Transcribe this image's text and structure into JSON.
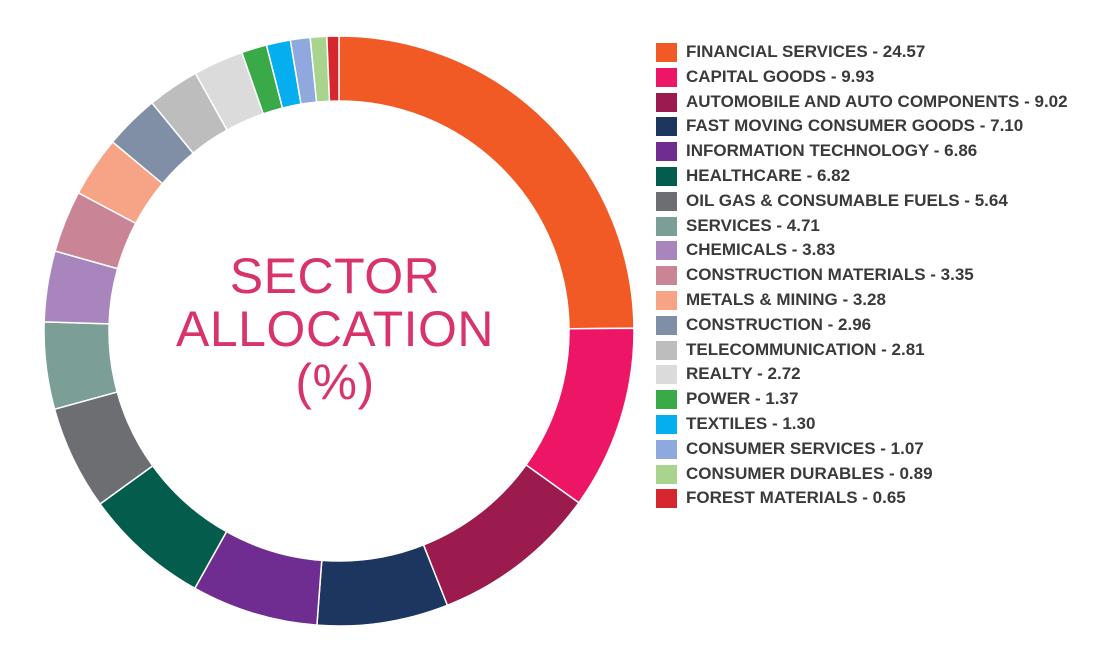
{
  "center_label": {
    "line1": "SECTOR",
    "line2": "ALLOCATION",
    "line3": "(%)"
  },
  "chart_data": {
    "type": "pie",
    "donut": true,
    "legend_placement": "right",
    "slices": [
      {
        "label": "FINANCIAL SERVICES - 24.57",
        "name": "FINANCIAL SERVICES",
        "value": 24.57,
        "color": "#f15a24"
      },
      {
        "label": "CAPITAL GOODS - 9.93",
        "name": "CAPITAL GOODS",
        "value": 9.93,
        "color": "#ed1566"
      },
      {
        "label": "AUTOMOBILE AND AUTO COMPONENTS - 9.02",
        "name": "AUTOMOBILE AND AUTO COMPONENTS",
        "value": 9.02,
        "color": "#9b1b4e"
      },
      {
        "label": "FAST MOVING CONSUMER GOODS - 7.10",
        "name": "FAST MOVING CONSUMER GOODS",
        "value": 7.1,
        "color": "#1c3660"
      },
      {
        "label": "INFORMATION TECHNOLOGY - 6.86",
        "name": "INFORMATION TECHNOLOGY",
        "value": 6.86,
        "color": "#6f2c91"
      },
      {
        "label": "HEALTHCARE - 6.82",
        "name": "HEALTHCARE",
        "value": 6.82,
        "color": "#045c4c"
      },
      {
        "label": "OIL GAS & CONSUMABLE FUELS - 5.64",
        "name": "OIL GAS & CONSUMABLE FUELS",
        "value": 5.64,
        "color": "#6d6e71"
      },
      {
        "label": "SERVICES - 4.71",
        "name": "SERVICES",
        "value": 4.71,
        "color": "#7b9f96"
      },
      {
        "label": "CHEMICALS - 3.83",
        "name": "CHEMICALS",
        "value": 3.83,
        "color": "#a886bd"
      },
      {
        "label": "CONSTRUCTION MATERIALS - 3.35",
        "name": "CONSTRUCTION MATERIALS",
        "value": 3.35,
        "color": "#c98496"
      },
      {
        "label": "METALS & MINING - 3.28",
        "name": "METALS & MINING",
        "value": 3.28,
        "color": "#f7a386"
      },
      {
        "label": "CONSTRUCTION - 2.96",
        "name": "CONSTRUCTION",
        "value": 2.96,
        "color": "#808ea6"
      },
      {
        "label": "TELECOMMUNICATION - 2.81",
        "name": "TELECOMMUNICATION",
        "value": 2.81,
        "color": "#bdbdbd"
      },
      {
        "label": "REALTY - 2.72",
        "name": "REALTY",
        "value": 2.72,
        "color": "#dbdbdb"
      },
      {
        "label": "POWER - 1.37",
        "name": "POWER",
        "value": 1.37,
        "color": "#3aaa48"
      },
      {
        "label": "TEXTILES - 1.30",
        "name": "TEXTILES",
        "value": 1.3,
        "color": "#04aeef"
      },
      {
        "label": "CONSUMER SERVICES - 1.07",
        "name": "CONSUMER SERVICES",
        "value": 1.07,
        "color": "#8fa9de"
      },
      {
        "label": "CONSUMER DURABLES - 0.89",
        "name": "CONSUMER DURABLES",
        "value": 0.89,
        "color": "#a9d48e"
      },
      {
        "label": "FOREST MATERIALS - 0.65",
        "name": "FOREST MATERIALS",
        "value": 0.65,
        "color": "#d7272e"
      }
    ]
  }
}
